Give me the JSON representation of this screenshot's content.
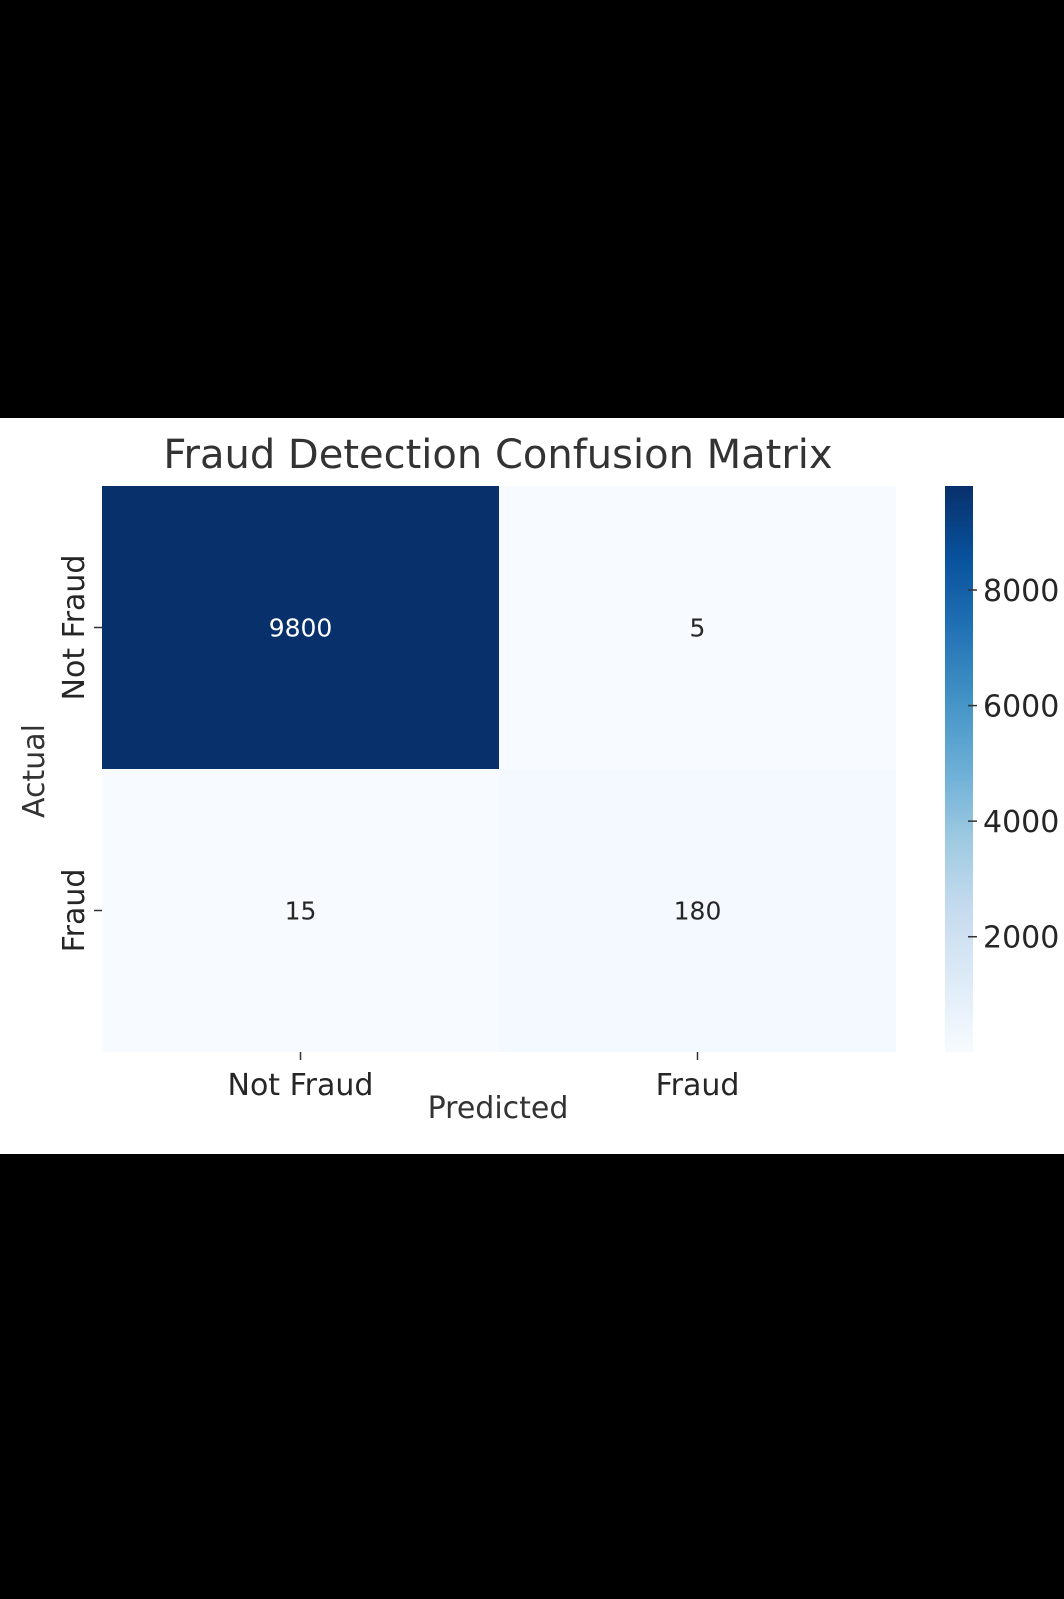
{
  "chart_data": {
    "type": "heatmap",
    "title": "Fraud Detection Confusion Matrix",
    "xlabel": "Predicted",
    "ylabel": "Actual",
    "x_categories": [
      "Not Fraud",
      "Fraud"
    ],
    "y_categories": [
      "Not Fraud",
      "Fraud"
    ],
    "values": [
      [
        9800,
        5
      ],
      [
        15,
        180
      ]
    ],
    "cell_labels": [
      [
        "9800",
        "5"
      ],
      [
        "15",
        "180"
      ]
    ],
    "colormap": "Blues",
    "color_low": "#f7fbff",
    "color_high": "#08306b",
    "colorbar": {
      "range": [
        5,
        9800
      ],
      "ticks": [
        2000,
        4000,
        6000,
        8000
      ],
      "tick_labels": [
        "2000",
        "4000",
        "6000",
        "8000"
      ]
    },
    "grid": false,
    "legend": "colorbar-right"
  }
}
